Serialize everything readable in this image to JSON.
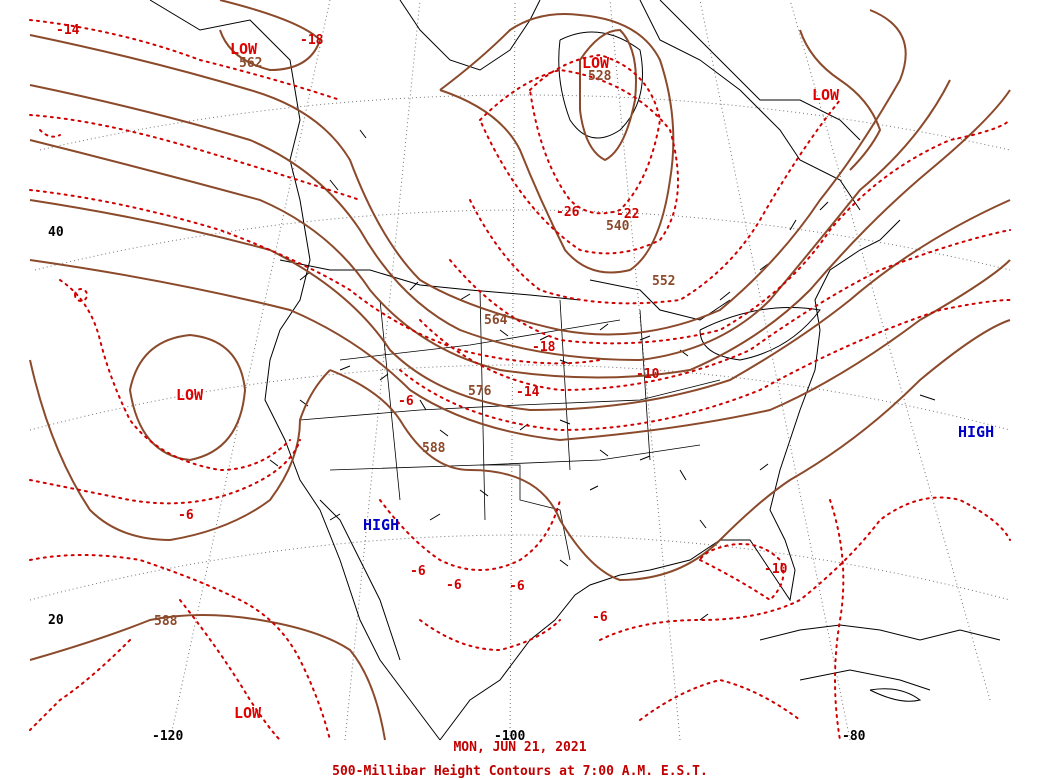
{
  "caption": {
    "date": "MON, JUN 21, 2021",
    "title": "500-Millibar Height Contours at 7:00 A.M. E.S.T."
  },
  "colors": {
    "height_contour": "#8b4a2b",
    "temperature_isotherm": "#d00000",
    "low_label": "#e00000",
    "high_label": "#0000c8",
    "geography": "#000000",
    "graticule": "#777777"
  },
  "latitude_labels": [
    "40",
    "20"
  ],
  "longitude_labels": [
    "-120",
    "-100",
    "-80"
  ],
  "pressure_centers": [
    {
      "text": "LOW",
      "kind": "low"
    },
    {
      "text": "LOW",
      "kind": "low"
    },
    {
      "text": "LOW",
      "kind": "low"
    },
    {
      "text": "LOW",
      "kind": "low"
    },
    {
      "text": "LOW",
      "kind": "low"
    },
    {
      "text": "HIGH",
      "kind": "high"
    },
    {
      "text": "HIGH",
      "kind": "high"
    }
  ],
  "height_labels": [
    "562",
    "528",
    "540",
    "552",
    "564",
    "576",
    "588",
    "588"
  ],
  "temperature_labels": [
    "-14",
    "-18",
    "-26",
    "-22",
    "-18",
    "-14",
    "-10",
    "-6",
    "-6",
    "-6",
    "-6",
    "-6",
    "-6",
    "-10"
  ]
}
